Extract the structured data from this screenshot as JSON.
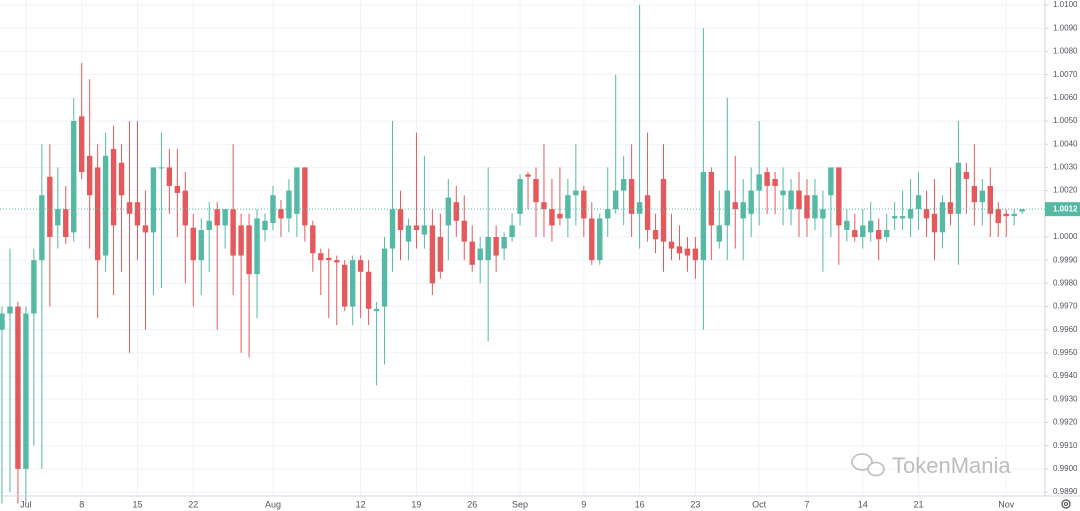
{
  "chart_data": {
    "type": "candlestick",
    "up_color": "#55b9a4",
    "down_color": "#e3595c",
    "grid": true,
    "ylim": [
      0.98883,
      1.01022
    ],
    "yticks": [
      {
        "value": 1.01,
        "label": "1.0100"
      },
      {
        "value": 1.009,
        "label": "1.0090"
      },
      {
        "value": 1.008,
        "label": "1.0080"
      },
      {
        "value": 1.007,
        "label": "1.0070"
      },
      {
        "value": 1.006,
        "label": "1.0060"
      },
      {
        "value": 1.005,
        "label": "1.0050"
      },
      {
        "value": 1.004,
        "label": "1.0040"
      },
      {
        "value": 1.003,
        "label": "1.0030"
      },
      {
        "value": 1.002,
        "label": "1.0020"
      },
      {
        "value": 1.001,
        "label": "1.0010"
      },
      {
        "value": 1.0,
        "label": "1.0000"
      },
      {
        "value": 0.999,
        "label": "0.9990"
      },
      {
        "value": 0.998,
        "label": "0.9980"
      },
      {
        "value": 0.997,
        "label": "0.9970"
      },
      {
        "value": 0.996,
        "label": "0.9960"
      },
      {
        "value": 0.995,
        "label": "0.9950"
      },
      {
        "value": 0.994,
        "label": "0.9940"
      },
      {
        "value": 0.993,
        "label": "0.9930"
      },
      {
        "value": 0.992,
        "label": "0.9920"
      },
      {
        "value": 0.991,
        "label": "0.9910"
      },
      {
        "value": 0.99,
        "label": "0.9900"
      },
      {
        "value": 0.989,
        "label": "0.9890"
      }
    ],
    "last_price": 1.0012,
    "watermark": "TokenMania",
    "categories": [
      null,
      null,
      null,
      "Jul",
      null,
      null,
      null,
      null,
      null,
      null,
      "8",
      null,
      null,
      null,
      null,
      null,
      null,
      "15",
      null,
      null,
      null,
      null,
      null,
      null,
      "22",
      null,
      null,
      null,
      null,
      null,
      null,
      null,
      null,
      null,
      "Aug",
      null,
      null,
      null,
      null,
      null,
      null,
      null,
      null,
      null,
      null,
      "12",
      null,
      null,
      null,
      null,
      null,
      null,
      "19",
      null,
      null,
      null,
      null,
      null,
      null,
      "26",
      null,
      null,
      null,
      null,
      null,
      "Sep",
      null,
      null,
      null,
      null,
      null,
      null,
      null,
      "9",
      null,
      null,
      null,
      null,
      null,
      null,
      "16",
      null,
      null,
      null,
      null,
      null,
      null,
      "23",
      null,
      null,
      null,
      null,
      null,
      null,
      null,
      "Oct",
      null,
      null,
      null,
      null,
      null,
      "7",
      null,
      null,
      null,
      null,
      null,
      null,
      "14",
      null,
      null,
      null,
      null,
      null,
      null,
      "21",
      null,
      null,
      null,
      null,
      null,
      null,
      null,
      null,
      null,
      null,
      "Nov",
      null,
      null
    ],
    "open": [
      0.996,
      0.9967,
      0.997,
      0.99,
      0.9967,
      0.999,
      1.0026,
      1.0005,
      1.0012,
      1.0002,
      1.0052,
      1.0035,
      1.003,
      0.9992,
      1.0038,
      1.0032,
      1.0015,
      1.0015,
      1.0005,
      1.0002,
      1.003,
      1.003,
      1.0022,
      1.002,
      1.0004,
      0.999,
      1.0003,
      1.0012,
      1.0005,
      1.0012,
      1.0005,
      1.0005,
      0.9984,
      1.0003,
      1.0006,
      1.0012,
      1.0008,
      1.001,
      1.003,
      1.0005,
      0.9993,
      0.9991,
      0.999,
      0.9988,
      0.997,
      0.999,
      0.9985,
      0.9968,
      0.997,
      0.9995,
      1.0012,
      0.9998,
      1.0005,
      1.0001,
      1.0005,
      1.0,
      1.0005,
      1.0015,
      1.0007,
      0.9998,
      0.999,
      0.999,
      1.0,
      0.9995,
      1.0,
      1.001,
      1.0027,
      1.0025,
      1.0015,
      1.0012,
      1.001,
      1.0008,
      1.0018,
      1.002,
      1.0008,
      0.999,
      1.0008,
      1.0012,
      1.002,
      1.0025,
      1.001,
      1.0018,
      1.0003,
      1.0025,
      0.9998,
      0.9996,
      0.9995,
      0.9995,
      0.999,
      1.0028,
      0.9998,
      1.0005,
      1.0015,
      1.0008,
      1.001,
      1.002,
      1.0028,
      1.0025,
      1.0018,
      1.0012,
      1.002,
      1.0018,
      1.0008,
      1.0008,
      1.0018,
      1.003,
      1.0003,
      1.0003,
      1.0,
      1.0002,
      1.0003,
      1.0,
      1.0008,
      1.0008,
      1.0008,
      1.0012,
      1.0012,
      1.001,
      1.0002,
      1.0015,
      1.001,
      1.0028,
      1.0022,
      1.0015,
      1.0022,
      1.0012,
      1.001,
      1.0009,
      1.0011
    ],
    "high": [
      0.997,
      0.9995,
      0.9972,
      0.997,
      0.9995,
      1.004,
      1.004,
      1.003,
      1.0022,
      1.006,
      1.0075,
      1.0068,
      1.004,
      1.0045,
      1.0048,
      1.004,
      1.005,
      1.005,
      1.002,
      1.003,
      1.0045,
      1.0038,
      1.0038,
      1.0028,
      1.001,
      1.0008,
      1.0015,
      1.0015,
      1.0012,
      1.004,
      1.001,
      1.001,
      1.0012,
      1.001,
      1.0022,
      1.0016,
      1.0025,
      1.003,
      1.003,
      1.0007,
      0.9995,
      0.9995,
      0.9992,
      0.999,
      0.9992,
      0.9992,
      0.999,
      0.9972,
      1.0,
      1.005,
      1.002,
      1.0008,
      1.0045,
      1.0035,
      1.0012,
      1.001,
      1.0025,
      1.0022,
      1.0018,
      1.0005,
      1.0,
      1.003,
      1.0005,
      1.0002,
      1.001,
      1.0027,
      1.0028,
      1.003,
      1.004,
      1.0025,
      1.003,
      1.0025,
      1.004,
      1.0022,
      1.0015,
      1.001,
      1.003,
      1.007,
      1.0035,
      1.004,
      1.01,
      1.0045,
      1.001,
      1.004,
      1.001,
      1.0005,
      1.0,
      1.0,
      1.009,
      1.003,
      1.002,
      1.006,
      1.0035,
      1.0025,
      1.003,
      1.005,
      1.003,
      1.0028,
      1.003,
      1.0025,
      1.0028,
      1.0025,
      1.0025,
      1.002,
      1.003,
      1.003,
      1.0012,
      1.001,
      1.0012,
      1.0015,
      1.0008,
      1.001,
      1.0015,
      1.002,
      1.0025,
      1.0028,
      1.002,
      1.0025,
      1.0018,
      1.003,
      1.005,
      1.0032,
      1.004,
      1.0025,
      1.003,
      1.0015,
      1.0012,
      1.0012,
      1.0012
    ],
    "low": [
      0.9885,
      0.989,
      0.9885,
      0.9885,
      0.991,
      0.99,
      0.997,
      0.9995,
      0.9997,
      0.9998,
      1.0025,
      0.9995,
      0.9965,
      0.9985,
      0.9975,
      0.9985,
      0.995,
      0.999,
      0.996,
      0.9975,
      0.9978,
      1.001,
      1.0,
      0.998,
      0.997,
      0.9975,
      0.9985,
      0.996,
      0.9995,
      0.9975,
      0.995,
      0.9948,
      0.9965,
      0.9998,
      1.0003,
      1.0,
      1.0002,
      1.0,
      0.9998,
      0.9985,
      0.9975,
      0.9965,
      0.9962,
      0.9968,
      0.9962,
      0.9965,
      0.9962,
      0.9936,
      0.9945,
      0.9985,
      0.999,
      0.999,
      0.9995,
      0.9995,
      0.9975,
      0.9982,
      0.999,
      1.0,
      0.999,
      0.9985,
      0.998,
      0.9955,
      0.9985,
      0.999,
      0.9998,
      1.0005,
      1.0012,
      1.0,
      1.0,
      0.9998,
      1.0005,
      1.0,
      1.0005,
      1.0,
      0.9988,
      0.9988,
      1.0,
      1.001,
      1.0005,
      1.0,
      0.9995,
      0.9998,
      0.9993,
      0.9985,
      0.999,
      0.999,
      0.9985,
      0.9982,
      0.996,
      0.999,
      0.9995,
      0.999,
      0.9995,
      0.999,
      1.0,
      1.0005,
      1.001,
      1.001,
      1.0005,
      1.0005,
      1.0,
      1.0,
      1.0003,
      0.9985,
      1.0,
      0.9988,
      0.9998,
      0.9998,
      0.9995,
      0.9998,
      0.999,
      0.9998,
      1.0003,
      1.0003,
      1.0,
      1.0003,
      1.0,
      0.999,
      0.9995,
      1.0005,
      0.9988,
      1.001,
      1.0005,
      1.0005,
      1.0,
      1.0,
      1.0,
      1.0005,
      1.001
    ],
    "close": [
      0.9967,
      0.997,
      0.99,
      0.9967,
      0.999,
      1.0018,
      1.0,
      1.0012,
      1.0,
      1.005,
      1.0028,
      1.0018,
      0.999,
      1.0035,
      1.0005,
      1.0018,
      1.001,
      1.0005,
      1.0002,
      1.003,
      1.003,
      1.0022,
      1.0019,
      1.0005,
      0.999,
      1.0003,
      1.0007,
      1.0005,
      1.0012,
      0.9992,
      0.9992,
      0.9984,
      1.0008,
      1.0007,
      1.0018,
      1.0008,
      1.002,
      1.003,
      1.0005,
      0.9993,
      0.999,
      0.999,
      0.9989,
      0.997,
      0.999,
      0.9985,
      0.9969,
      0.9969,
      0.9995,
      1.0012,
      1.0003,
      1.0005,
      1.0003,
      1.0005,
      0.998,
      0.9985,
      1.0017,
      1.0007,
      0.9998,
      0.9988,
      0.9995,
      1.0,
      0.9992,
      1.0,
      1.0005,
      1.0025,
      1.0026,
      1.0015,
      1.0012,
      1.0005,
      1.0008,
      1.0018,
      1.002,
      1.0008,
      0.999,
      1.0008,
      1.0012,
      1.002,
      1.0025,
      1.001,
      1.0015,
      1.0003,
      0.9999,
      0.9998,
      0.9995,
      0.9993,
      0.9992,
      0.999,
      1.0028,
      1.0005,
      1.0005,
      1.002,
      1.0012,
      1.0015,
      1.002,
      1.0027,
      1.0022,
      1.0022,
      1.002,
      1.002,
      1.0012,
      1.0008,
      1.0018,
      1.0012,
      1.003,
      1.0005,
      1.0007,
      1.0,
      1.0005,
      1.0007,
      0.9999,
      1.0003,
      1.0009,
      1.0009,
      1.0012,
      1.0018,
      1.0008,
      1.0002,
      1.0015,
      1.001,
      1.0032,
      1.0025,
      1.0015,
      1.002,
      1.001,
      1.0006,
      1.0009,
      1.001,
      1.0012
    ]
  }
}
